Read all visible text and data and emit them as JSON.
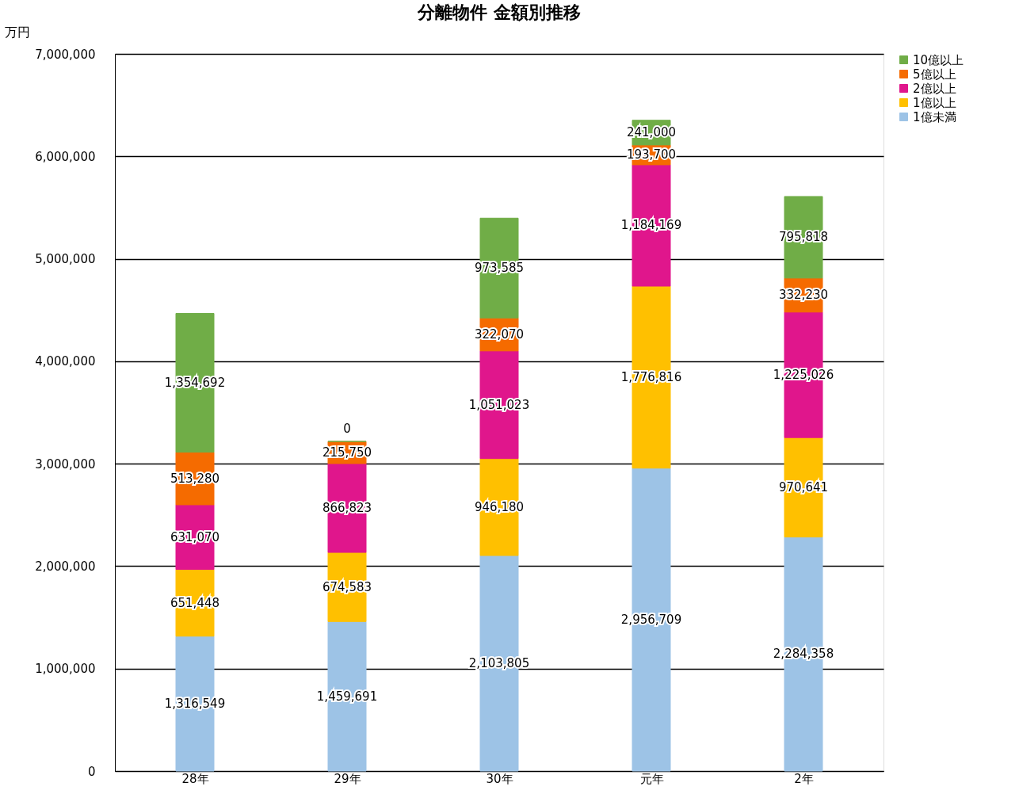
{
  "chart_data": {
    "type": "bar",
    "title": "分離物件 金額別推移",
    "ylabel": "万円",
    "stacked": true,
    "legend": "right",
    "grid": "y",
    "categories": [
      "28年",
      "29年",
      "30年",
      "元年",
      "2年"
    ],
    "ylim": [
      0,
      7000000
    ],
    "yticks": [
      {
        "value": 0,
        "label": "0"
      },
      {
        "value": 1000000,
        "label": "1,000,000"
      },
      {
        "value": 2000000,
        "label": "2,000,000"
      },
      {
        "value": 3000000,
        "label": "3,000,000"
      },
      {
        "value": 4000000,
        "label": "4,000,000"
      },
      {
        "value": 5000000,
        "label": "5,000,000"
      },
      {
        "value": 6000000,
        "label": "6,000,000"
      },
      {
        "value": 7000000,
        "label": "7,000,000"
      }
    ],
    "series": [
      {
        "name": "1億未満",
        "color": "#9dc3e6",
        "values": [
          1316549,
          1459691,
          2103805,
          2956709,
          2284358
        ],
        "value_labels": [
          "1,316,549",
          "1,459,691",
          "2,103,805",
          "2,956,709",
          "2,284,358"
        ]
      },
      {
        "name": "1億以上",
        "color": "#ffc000",
        "values": [
          651448,
          674583,
          946180,
          1776816,
          970641
        ],
        "value_labels": [
          "651,448",
          "674,583",
          "946,180",
          "1,776,816",
          "970,641"
        ]
      },
      {
        "name": "2億以上",
        "color": "#e0168c",
        "values": [
          631070,
          866823,
          1051023,
          1184169,
          1225026
        ],
        "value_labels": [
          "631,070",
          "866,823",
          "1,051,023",
          "1,184,169",
          "1,225,026"
        ]
      },
      {
        "name": "5億以上",
        "color": "#f56b00",
        "values": [
          513280,
          215750,
          322070,
          193700,
          332230
        ],
        "value_labels": [
          "513,280",
          "215,750",
          "322,070",
          "193,700",
          "332,230"
        ]
      },
      {
        "name": "10億以上",
        "color": "#70ad47",
        "values": [
          1354692,
          0,
          973585,
          241000,
          795818
        ],
        "value_labels": [
          "1,354,692",
          "0",
          "973,585",
          "241,000",
          "795,818"
        ]
      }
    ]
  }
}
